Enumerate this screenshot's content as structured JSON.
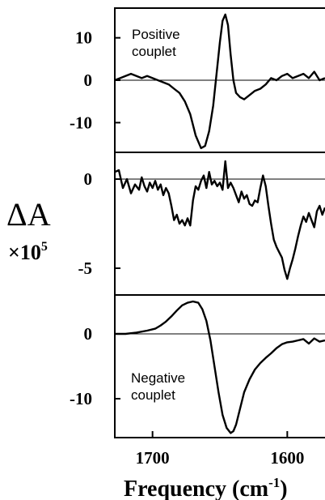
{
  "chart_data": [
    {
      "type": "line",
      "annotation_lines": [
        "Positive",
        "couplet"
      ],
      "xlim": [
        1728,
        1572
      ],
      "ylim": [
        -17,
        17
      ],
      "yticks": [
        {
          "v": 10,
          "label": "10"
        },
        {
          "v": 0,
          "label": "0"
        },
        {
          "v": -10,
          "label": "-10"
        }
      ],
      "zero_line": true,
      "x": [
        1728,
        1724,
        1720,
        1716,
        1712,
        1708,
        1704,
        1700,
        1696,
        1692,
        1688,
        1684,
        1680,
        1676,
        1672,
        1668,
        1664,
        1661,
        1658,
        1655,
        1652,
        1650,
        1648,
        1646,
        1644,
        1642,
        1640,
        1638,
        1635,
        1632,
        1628,
        1624,
        1620,
        1616,
        1612,
        1608,
        1604,
        1600,
        1596,
        1592,
        1588,
        1584,
        1580,
        1576,
        1572
      ],
      "y": [
        0,
        0.5,
        1,
        1.5,
        1,
        0.5,
        1,
        0.5,
        0,
        -0.5,
        -1,
        -2,
        -3,
        -5,
        -8,
        -13,
        -16,
        -15.5,
        -12,
        -6,
        3,
        9,
        14,
        15.5,
        13,
        6,
        0,
        -3,
        -4,
        -4.5,
        -3.5,
        -2.5,
        -2,
        -1,
        0.5,
        0,
        1,
        1.5,
        0.5,
        1,
        1.5,
        0.5,
        2,
        0,
        0.5
      ]
    },
    {
      "type": "line",
      "xlim": [
        1728,
        1572
      ],
      "ylim": [
        -6.5,
        1.5
      ],
      "yticks": [
        {
          "v": 0,
          "label": "0"
        },
        {
          "v": -5,
          "label": "-5"
        }
      ],
      "zero_line": true,
      "x": [
        1728,
        1725,
        1722,
        1719,
        1716,
        1713,
        1710,
        1708,
        1706,
        1704,
        1702,
        1700,
        1698,
        1696,
        1694,
        1692,
        1690,
        1688,
        1686,
        1684,
        1682,
        1680,
        1678,
        1676,
        1674,
        1672,
        1670,
        1668,
        1666,
        1664,
        1662,
        1660,
        1658,
        1656,
        1654,
        1652,
        1650,
        1648,
        1646,
        1644,
        1642,
        1640,
        1638,
        1636,
        1634,
        1632,
        1630,
        1628,
        1626,
        1624,
        1622,
        1620,
        1618,
        1616,
        1614,
        1612,
        1610,
        1608,
        1606,
        1604,
        1602,
        1600,
        1598,
        1596,
        1594,
        1592,
        1590,
        1588,
        1586,
        1584,
        1582,
        1580,
        1578,
        1576,
        1574,
        1572
      ],
      "y": [
        0.4,
        0.5,
        -0.5,
        0,
        -0.8,
        -0.3,
        -0.6,
        0.1,
        -0.4,
        -0.7,
        -0.2,
        -0.5,
        -0.1,
        -0.6,
        -0.3,
        -0.9,
        -0.5,
        -0.8,
        -1.5,
        -2.3,
        -2,
        -2.5,
        -2.3,
        -2.6,
        -2.2,
        -2.6,
        -1.2,
        -0.4,
        -0.6,
        -0.1,
        0.2,
        -0.5,
        0.4,
        -0.3,
        -0.1,
        -0.4,
        -0.2,
        -0.6,
        1,
        -0.5,
        -0.2,
        -0.5,
        -0.9,
        -1.3,
        -0.7,
        -1.1,
        -0.9,
        -1.4,
        -1.5,
        -1.2,
        -1.3,
        -0.5,
        0.2,
        -0.4,
        -1.5,
        -2.5,
        -3.4,
        -3.8,
        -4.1,
        -4.4,
        -5.1,
        -5.6,
        -5,
        -4.5,
        -3.9,
        -3.2,
        -2.6,
        -2.1,
        -2.4,
        -1.9,
        -2.3,
        -2.7,
        -1.8,
        -1.5,
        -2,
        -1.6
      ]
    },
    {
      "type": "line",
      "annotation_lines": [
        "Negative",
        "couplet"
      ],
      "xlim": [
        1728,
        1572
      ],
      "ylim": [
        -16,
        6
      ],
      "yticks": [
        {
          "v": 0,
          "label": "0"
        },
        {
          "v": -10,
          "label": "-10"
        }
      ],
      "zero_line": true,
      "xticks": [
        {
          "v": 1700,
          "label": "1700"
        },
        {
          "v": 1600,
          "label": "1600"
        }
      ],
      "x": [
        1728,
        1720,
        1712,
        1704,
        1698,
        1694,
        1690,
        1686,
        1682,
        1678,
        1674,
        1670,
        1666,
        1663,
        1660,
        1657,
        1654,
        1651,
        1648,
        1645,
        1642,
        1640,
        1638,
        1635,
        1632,
        1628,
        1624,
        1620,
        1616,
        1612,
        1608,
        1604,
        1600,
        1596,
        1592,
        1588,
        1584,
        1580,
        1576,
        1572
      ],
      "y": [
        0,
        0,
        0.2,
        0.5,
        0.8,
        1.3,
        1.9,
        2.7,
        3.6,
        4.4,
        4.8,
        5,
        4.8,
        3.8,
        2,
        -1,
        -5,
        -9,
        -12.5,
        -14.5,
        -15.3,
        -15,
        -14,
        -11.5,
        -9,
        -7,
        -5.5,
        -4.5,
        -3.7,
        -3,
        -2.2,
        -1.6,
        -1.3,
        -1.2,
        -1,
        -0.8,
        -1.5,
        -0.7,
        -1.2,
        -1
      ]
    }
  ],
  "axis": {
    "ylabel_main": "ΔA",
    "ylabel_mult": "×10",
    "ylabel_exp": "5",
    "xlabel_pre": "Frequency (cm",
    "xlabel_exp": "-1",
    "xlabel_post": ")"
  }
}
